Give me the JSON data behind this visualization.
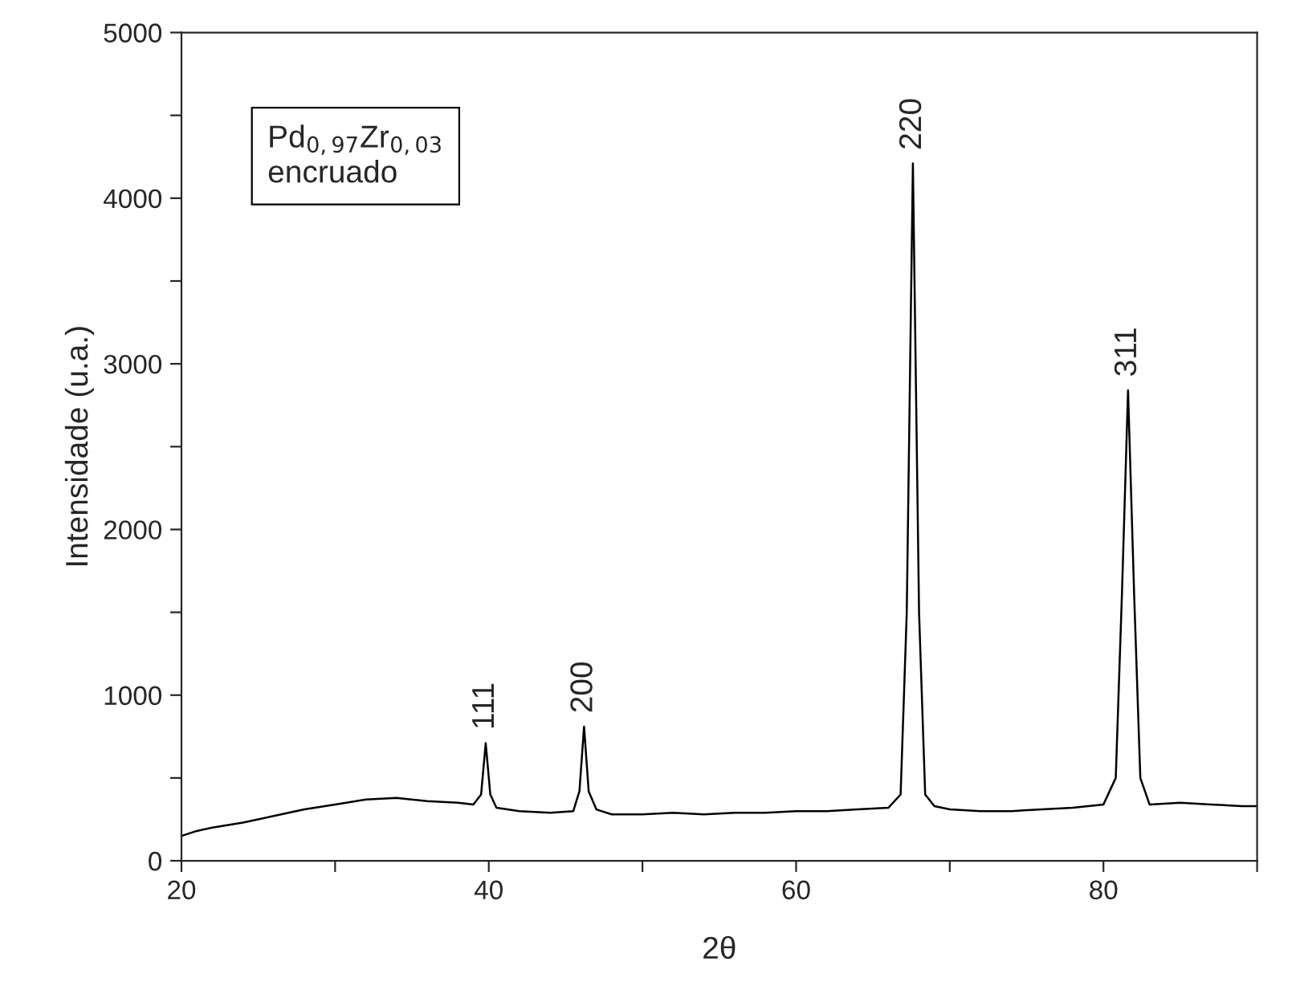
{
  "chart_data": {
    "type": "line",
    "xlabel": "2θ",
    "ylabel": "Intensidade (u.a.)",
    "xlim": [
      20,
      90
    ],
    "xticks": [
      20,
      {
        "value": 30,
        "label": null
      },
      40,
      {
        "value": 50,
        "label": null
      },
      60,
      {
        "value": 70,
        "label": null
      },
      80,
      {
        "value": 90,
        "label": null
      }
    ],
    "ylim": [
      0,
      5000
    ],
    "yticks": [
      0,
      {
        "value": 500,
        "label": null
      },
      1000,
      {
        "value": 1500,
        "label": null
      },
      2000,
      {
        "value": 2500,
        "label": null
      },
      3000,
      {
        "value": 3500,
        "label": null
      },
      4000,
      {
        "value": 4500,
        "label": null
      },
      5000
    ],
    "grid": false,
    "legend": false,
    "marker": "none",
    "line_style": "solid",
    "series": [
      {
        "color": "#000000",
        "x": [
          20,
          21,
          22,
          24,
          26,
          28,
          30,
          32,
          34,
          36,
          38,
          39,
          39.5,
          39.8,
          40.1,
          40.5,
          42,
          44,
          45.5,
          45.9,
          46.2,
          46.5,
          47,
          48,
          50,
          52,
          54,
          56,
          58,
          60,
          62,
          64,
          66,
          66.8,
          67.2,
          67.6,
          68.0,
          68.4,
          69,
          70,
          72,
          74,
          76,
          78,
          80,
          80.8,
          81.2,
          81.6,
          82.0,
          82.4,
          83,
          85,
          87,
          89,
          90
        ],
        "values": [
          150,
          180,
          200,
          230,
          270,
          310,
          340,
          370,
          380,
          360,
          350,
          340,
          400,
          710,
          400,
          320,
          300,
          290,
          300,
          420,
          810,
          420,
          310,
          280,
          280,
          290,
          280,
          290,
          290,
          300,
          300,
          310,
          320,
          400,
          1500,
          4210,
          1500,
          400,
          330,
          310,
          300,
          300,
          310,
          320,
          340,
          500,
          1600,
          2840,
          1600,
          500,
          340,
          350,
          340,
          330,
          330
        ]
      }
    ],
    "annotations": [
      "Pd$_{0,97}$Zr$_{0,03}$\nencruado",
      {
        "text": "111",
        "x": 39.8,
        "y": 710
      },
      {
        "text": "200",
        "x": 46.2,
        "y": 810
      },
      {
        "text": "220",
        "x": 67.6,
        "y": 4210
      },
      {
        "text": "311",
        "x": 81.6,
        "y": 2840
      }
    ]
  }
}
